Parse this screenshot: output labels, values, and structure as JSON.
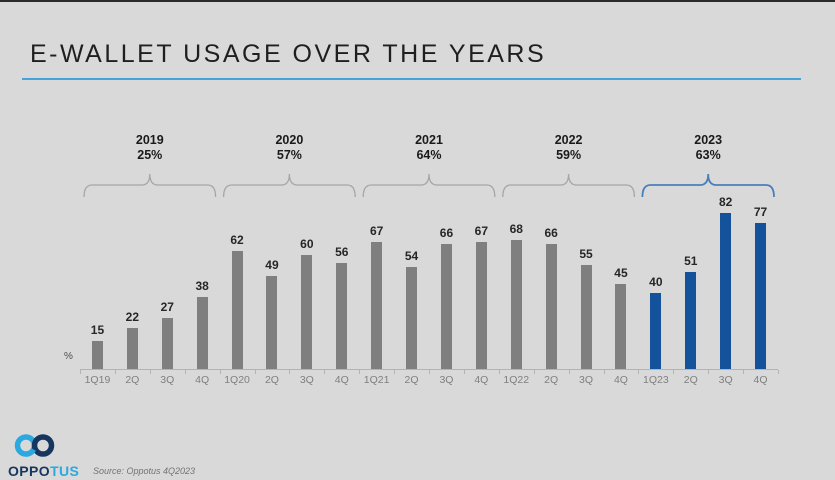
{
  "title": {
    "text": "E-WALLET USAGE OVER THE YEARS"
  },
  "colors": {
    "background": "#d9d9d9",
    "title_underline": "#46a2da",
    "bar_default": "#7f7f7f",
    "bar_highlight": "#14529b",
    "bracket_default": "#a6a6a6",
    "bracket_highlight": "#4a7ebb",
    "axis": "#b3b3b3"
  },
  "chart_data": {
    "type": "bar",
    "title": "E-WALLET USAGE OVER THE YEARS",
    "unit_label": "%",
    "ylim": [
      0,
      85
    ],
    "grid": false,
    "categories": [
      "1Q19",
      "2Q",
      "3Q",
      "4Q",
      "1Q20",
      "2Q",
      "3Q",
      "4Q",
      "1Q21",
      "2Q",
      "3Q",
      "4Q",
      "1Q22",
      "2Q",
      "3Q",
      "4Q",
      "1Q23",
      "2Q",
      "3Q",
      "4Q"
    ],
    "values": [
      15,
      22,
      27,
      38,
      62,
      49,
      60,
      56,
      67,
      54,
      66,
      67,
      68,
      66,
      55,
      45,
      40,
      51,
      82,
      77
    ],
    "highlight_from_index": 16,
    "year_groups": [
      {
        "year": "2019",
        "avg": "25%",
        "start": 0,
        "end": 3,
        "highlight": false
      },
      {
        "year": "2020",
        "avg": "57%",
        "start": 4,
        "end": 7,
        "highlight": false
      },
      {
        "year": "2021",
        "avg": "64%",
        "start": 8,
        "end": 11,
        "highlight": false
      },
      {
        "year": "2022",
        "avg": "59%",
        "start": 12,
        "end": 15,
        "highlight": false
      },
      {
        "year": "2023",
        "avg": "63%",
        "start": 16,
        "end": 19,
        "highlight": true
      }
    ]
  },
  "footer": {
    "logo_text_primary": "OPPO",
    "logo_text_secondary": "TUS",
    "logo_color_light": "#2aa9e0",
    "logo_color_dark": "#16365f",
    "source": "Source: Oppotus 4Q2023"
  }
}
